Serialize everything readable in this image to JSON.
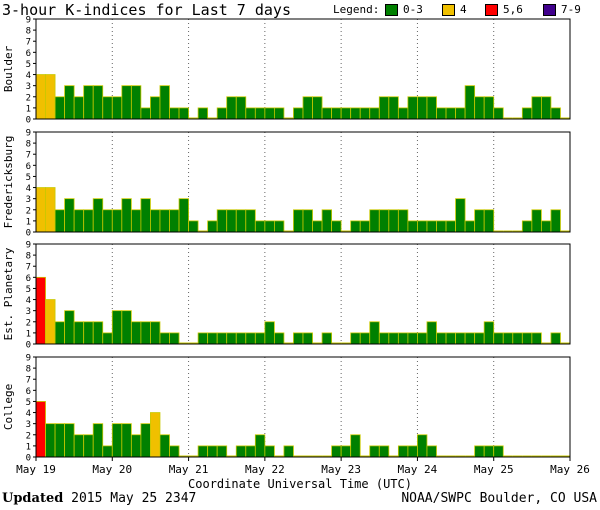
{
  "title": "3-hour K-indices for Last 7 days",
  "legend": {
    "label": "Legend:",
    "items": [
      {
        "label": "0-3",
        "color": "#008000"
      },
      {
        "label": "4",
        "color": "#f0c000"
      },
      {
        "label": "5,6",
        "color": "#ff0000"
      },
      {
        "label": "7-9",
        "color": "#40008c"
      }
    ]
  },
  "footer": {
    "updated_label": "Updated",
    "updated_value": "2015 May 25 2347",
    "credit": "NOAA/SWPC Boulder, CO USA"
  },
  "chart_data": {
    "type": "bar",
    "xlabel": "Coordinate Universal Time (UTC)",
    "x_ticks": [
      "May 19",
      "May 20",
      "May 21",
      "May 22",
      "May 23",
      "May 24",
      "May 25",
      "May 26"
    ],
    "y_ticks": [
      "0",
      "1",
      "2",
      "3",
      "4",
      "5",
      "6",
      "7",
      "8",
      "9"
    ],
    "ylim": [
      0,
      9
    ],
    "intervals_per_day": 8,
    "panels": [
      {
        "name": "Boulder",
        "values": [
          4,
          4,
          2,
          3,
          2,
          3,
          3,
          2,
          2,
          3,
          3,
          1,
          2,
          3,
          1,
          1,
          0,
          1,
          0,
          1,
          2,
          2,
          1,
          1,
          1,
          1,
          0,
          1,
          2,
          2,
          1,
          1,
          1,
          1,
          1,
          1,
          2,
          2,
          1,
          2,
          2,
          2,
          1,
          1,
          1,
          3,
          2,
          2,
          1,
          0,
          0,
          1,
          2,
          2,
          1,
          0
        ]
      },
      {
        "name": "Fredericksburg",
        "values": [
          4,
          4,
          2,
          3,
          2,
          2,
          3,
          2,
          2,
          3,
          2,
          3,
          2,
          2,
          2,
          3,
          1,
          0,
          1,
          2,
          2,
          2,
          2,
          1,
          1,
          1,
          0,
          2,
          2,
          1,
          2,
          1,
          0,
          1,
          1,
          2,
          2,
          2,
          2,
          1,
          1,
          1,
          1,
          1,
          3,
          1,
          2,
          2,
          0,
          0,
          0,
          1,
          2,
          1,
          2,
          0
        ]
      },
      {
        "name": "Est. Planetary",
        "values": [
          6,
          4,
          2,
          3,
          2,
          2,
          2,
          1,
          3,
          3,
          2,
          2,
          2,
          1,
          1,
          0,
          0,
          1,
          1,
          1,
          1,
          1,
          1,
          1,
          2,
          1,
          0,
          1,
          1,
          0,
          1,
          0,
          0,
          1,
          1,
          2,
          1,
          1,
          1,
          1,
          1,
          2,
          1,
          1,
          1,
          1,
          1,
          2,
          1,
          1,
          1,
          1,
          1,
          0,
          1,
          0
        ]
      },
      {
        "name": "College",
        "values": [
          5,
          3,
          3,
          3,
          2,
          2,
          3,
          1,
          3,
          3,
          2,
          3,
          4,
          2,
          1,
          0,
          0,
          1,
          1,
          1,
          0,
          1,
          1,
          2,
          1,
          0,
          1,
          0,
          0,
          0,
          0,
          1,
          1,
          2,
          0,
          1,
          1,
          0,
          1,
          1,
          2,
          1,
          0,
          0,
          0,
          0,
          1,
          1,
          1,
          0,
          0,
          0,
          0,
          0,
          0,
          0
        ]
      }
    ]
  }
}
